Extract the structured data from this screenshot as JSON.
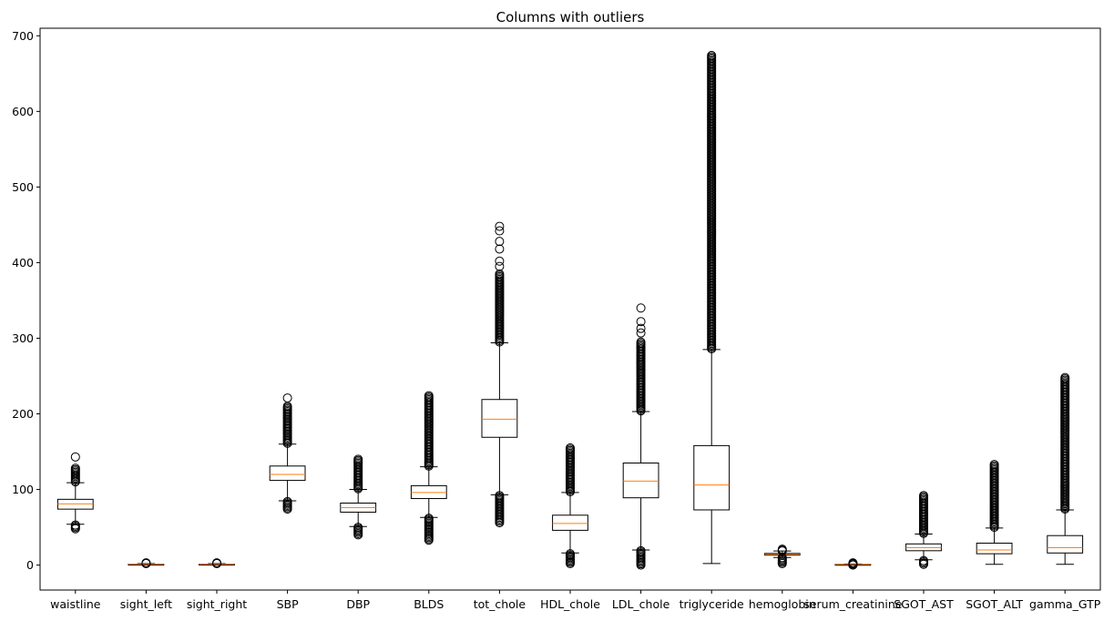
{
  "chart_data": {
    "type": "boxplot",
    "title": "Columns with outliers",
    "xlabel": "",
    "ylabel": "",
    "ylim": [
      -33,
      710
    ],
    "yticks": [
      0,
      100,
      200,
      300,
      400,
      500,
      600,
      700
    ],
    "grid": false,
    "legend": "none",
    "colors": {
      "box": "#000000",
      "median": "#ff7f0e",
      "flier": "#000000",
      "background": "#ffffff"
    },
    "categories": [
      "waistline",
      "sight_left",
      "sight_right",
      "SBP",
      "DBP",
      "BLDS",
      "tot_chole",
      "HDL_chole",
      "LDL_chole",
      "triglyceride",
      "hemoglobin",
      "serum_creatinine",
      "SGOT_AST",
      "SGOT_ALT",
      "gamma_GTP"
    ],
    "boxes": [
      {
        "name": "waistline",
        "whislo": 54,
        "q1": 74,
        "med": 81,
        "q3": 87,
        "whishi": 109,
        "low_fliers": [
          48,
          53
        ],
        "high_fliers": [
          110,
          128
        ],
        "extra_fliers": [
          143
        ]
      },
      {
        "name": "sight_left",
        "whislo": 0.1,
        "q1": 0.7,
        "med": 1.0,
        "q3": 1.2,
        "whishi": 1.9,
        "low_fliers": [],
        "high_fliers": [
          2,
          3
        ],
        "extra_fliers": []
      },
      {
        "name": "sight_right",
        "whislo": 0.1,
        "q1": 0.7,
        "med": 1.0,
        "q3": 1.2,
        "whishi": 1.9,
        "low_fliers": [],
        "high_fliers": [
          2,
          3
        ],
        "extra_fliers": []
      },
      {
        "name": "SBP",
        "whislo": 85,
        "q1": 112,
        "med": 120,
        "q3": 131,
        "whishi": 160,
        "low_fliers": [
          74,
          84
        ],
        "high_fliers": [
          161,
          210
        ],
        "extra_fliers": [
          221
        ]
      },
      {
        "name": "DBP",
        "whislo": 51,
        "q1": 70,
        "med": 76,
        "q3": 82,
        "whishi": 100,
        "low_fliers": [
          40,
          50
        ],
        "high_fliers": [
          101,
          140
        ],
        "extra_fliers": []
      },
      {
        "name": "BLDS",
        "whislo": 63,
        "q1": 88,
        "med": 96,
        "q3": 105,
        "whishi": 130,
        "low_fliers": [
          33,
          62
        ],
        "high_fliers": [
          131,
          224
        ],
        "extra_fliers": []
      },
      {
        "name": "tot_chole",
        "whislo": 93,
        "q1": 169,
        "med": 193,
        "q3": 219,
        "whishi": 294,
        "low_fliers": [
          56,
          92
        ],
        "high_fliers": [
          295,
          385
        ],
        "extra_fliers": [
          395,
          402,
          418,
          428,
          442,
          448
        ]
      },
      {
        "name": "HDL_chole",
        "whislo": 16,
        "q1": 46,
        "med": 55,
        "q3": 66,
        "whishi": 96,
        "low_fliers": [
          2,
          15
        ],
        "high_fliers": [
          97,
          155
        ],
        "extra_fliers": []
      },
      {
        "name": "LDL_chole",
        "whislo": 20,
        "q1": 89,
        "med": 111,
        "q3": 135,
        "whishi": 203,
        "low_fliers": [
          0,
          19
        ],
        "high_fliers": [
          204,
          295
        ],
        "extra_fliers": [
          307,
          313,
          322,
          340
        ]
      },
      {
        "name": "triglyceride",
        "whislo": 2,
        "q1": 73,
        "med": 106,
        "q3": 158,
        "whishi": 285,
        "low_fliers": [],
        "high_fliers": [
          286,
          674
        ],
        "extra_fliers": []
      },
      {
        "name": "hemoglobin",
        "whislo": 10,
        "q1": 13.2,
        "med": 14.3,
        "q3": 15.4,
        "whishi": 18.6,
        "low_fliers": [
          2,
          9.9
        ],
        "high_fliers": [
          18.7,
          21
        ],
        "extra_fliers": []
      },
      {
        "name": "serum_creatinine",
        "whislo": 0.4,
        "q1": 0.7,
        "med": 0.8,
        "q3": 1.0,
        "whishi": 1.5,
        "low_fliers": [
          0.1,
          0.3
        ],
        "high_fliers": [
          1.6,
          3
        ],
        "extra_fliers": []
      },
      {
        "name": "SGOT_AST",
        "whislo": 7,
        "q1": 19,
        "med": 23,
        "q3": 28,
        "whishi": 41,
        "low_fliers": [
          1,
          6
        ],
        "high_fliers": [
          42,
          92
        ],
        "extra_fliers": []
      },
      {
        "name": "SGOT_ALT",
        "whislo": 1,
        "q1": 15,
        "med": 20,
        "q3": 29,
        "whishi": 49,
        "low_fliers": [],
        "high_fliers": [
          50,
          133
        ],
        "extra_fliers": []
      },
      {
        "name": "gamma_GTP",
        "whislo": 1,
        "q1": 16,
        "med": 23,
        "q3": 39,
        "whishi": 73,
        "low_fliers": [],
        "high_fliers": [
          74,
          248
        ],
        "extra_fliers": []
      }
    ]
  }
}
